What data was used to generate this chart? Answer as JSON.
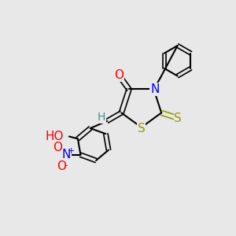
{
  "background_color": "#e8e8e8",
  "bond_color": "#000000",
  "atom_colors": {
    "O": "#ff0000",
    "N": "#0000ff",
    "S": "#999900",
    "H": "#4a8a8a",
    "C": "#000000"
  },
  "font_size_atom": 11,
  "font_size_H": 10
}
